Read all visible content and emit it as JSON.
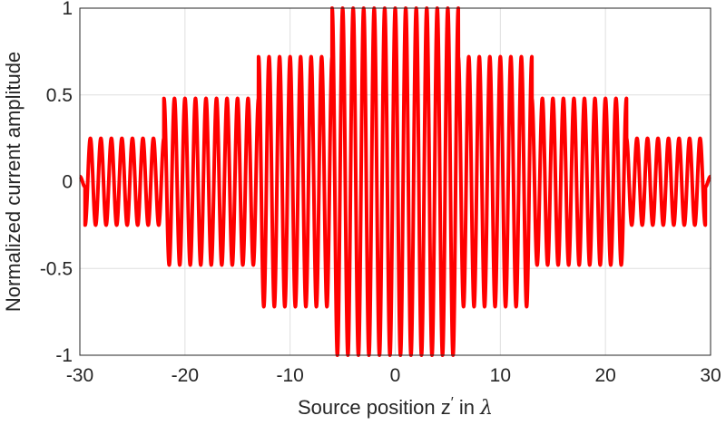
{
  "chart_data": {
    "type": "line",
    "xlabel_parts": {
      "prefix": "Source position z",
      "prime": "′",
      "middle": " in ",
      "symbol": "λ"
    },
    "ylabel": "Normalized current amplitude",
    "xlim": [
      -30,
      30
    ],
    "ylim": [
      -1,
      1
    ],
    "xticks": [
      -30,
      -20,
      -10,
      0,
      10,
      20,
      30
    ],
    "xtick_labels": [
      "-30",
      "-20",
      "-10",
      "0",
      "10",
      "20",
      "30"
    ],
    "yticks": [
      -1,
      -0.5,
      0,
      0.5,
      1
    ],
    "ytick_labels": [
      "-1",
      "-0.5",
      "0",
      "0.5",
      "1"
    ],
    "grid": true,
    "series": [
      {
        "color": "#ff0000",
        "description": "Sinusoidal current with period 1 λ modulated by a stepped envelope: amplitude ~1.0 for |z′|<6, ~0.72 for 6–13, ~0.48 for 13–22, ~0.25 for 22–29.5, 0 at ends",
        "period": 1.0,
        "envelope": [
          {
            "from": 0,
            "to": 6,
            "amplitude": 1.0
          },
          {
            "from": 6,
            "to": 13,
            "amplitude": 0.72
          },
          {
            "from": 13,
            "to": 22,
            "amplitude": 0.48
          },
          {
            "from": 22,
            "to": 29.5,
            "amplitude": 0.25
          },
          {
            "from": 29.5,
            "to": 30,
            "amplitude": 0.03
          }
        ]
      }
    ]
  }
}
